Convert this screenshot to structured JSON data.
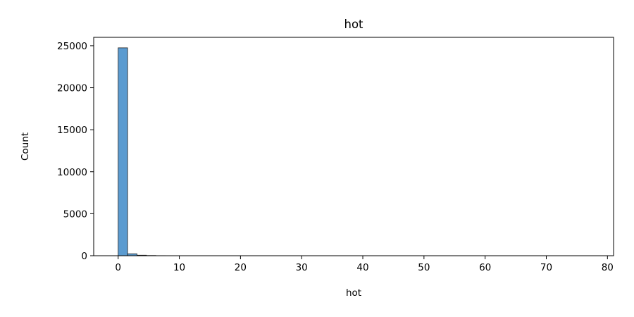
{
  "chart_data": {
    "type": "bar",
    "title": "hot",
    "xlabel": "hot",
    "ylabel": "Count",
    "xlim": [
      -4,
      81
    ],
    "ylim": [
      0,
      26000
    ],
    "xticks": [
      0,
      10,
      20,
      30,
      40,
      50,
      60,
      70,
      80
    ],
    "yticks": [
      0,
      5000,
      10000,
      15000,
      20000,
      25000
    ],
    "grid": false,
    "legend": "none",
    "bar_color": "#5b9bd0",
    "bin_width": 1.54,
    "bins": [
      {
        "x0": 0.0,
        "x1": 1.54,
        "count": 24750
      },
      {
        "x0": 1.54,
        "x1": 3.08,
        "count": 230
      },
      {
        "x0": 3.08,
        "x1": 4.62,
        "count": 60
      },
      {
        "x0": 4.62,
        "x1": 6.16,
        "count": 25
      },
      {
        "x0": 6.16,
        "x1": 7.7,
        "count": 10
      },
      {
        "x0": 7.7,
        "x1": 9.24,
        "count": 6
      },
      {
        "x0": 9.24,
        "x1": 10.78,
        "count": 4
      },
      {
        "x0": 16.94,
        "x1": 18.48,
        "count": 8
      },
      {
        "x0": 18.48,
        "x1": 20.02,
        "count": 6
      },
      {
        "x0": 21.56,
        "x1": 23.1,
        "count": 8
      },
      {
        "x0": 23.1,
        "x1": 24.64,
        "count": 5
      },
      {
        "x0": 27.72,
        "x1": 29.26,
        "count": 6
      },
      {
        "x0": 29.26,
        "x1": 30.8,
        "count": 4
      },
      {
        "x0": 30.8,
        "x1": 32.34,
        "count": 2
      },
      {
        "x0": 46.2,
        "x1": 47.74,
        "count": 1
      },
      {
        "x0": 75.46,
        "x1": 77.0,
        "count": 1
      }
    ]
  }
}
